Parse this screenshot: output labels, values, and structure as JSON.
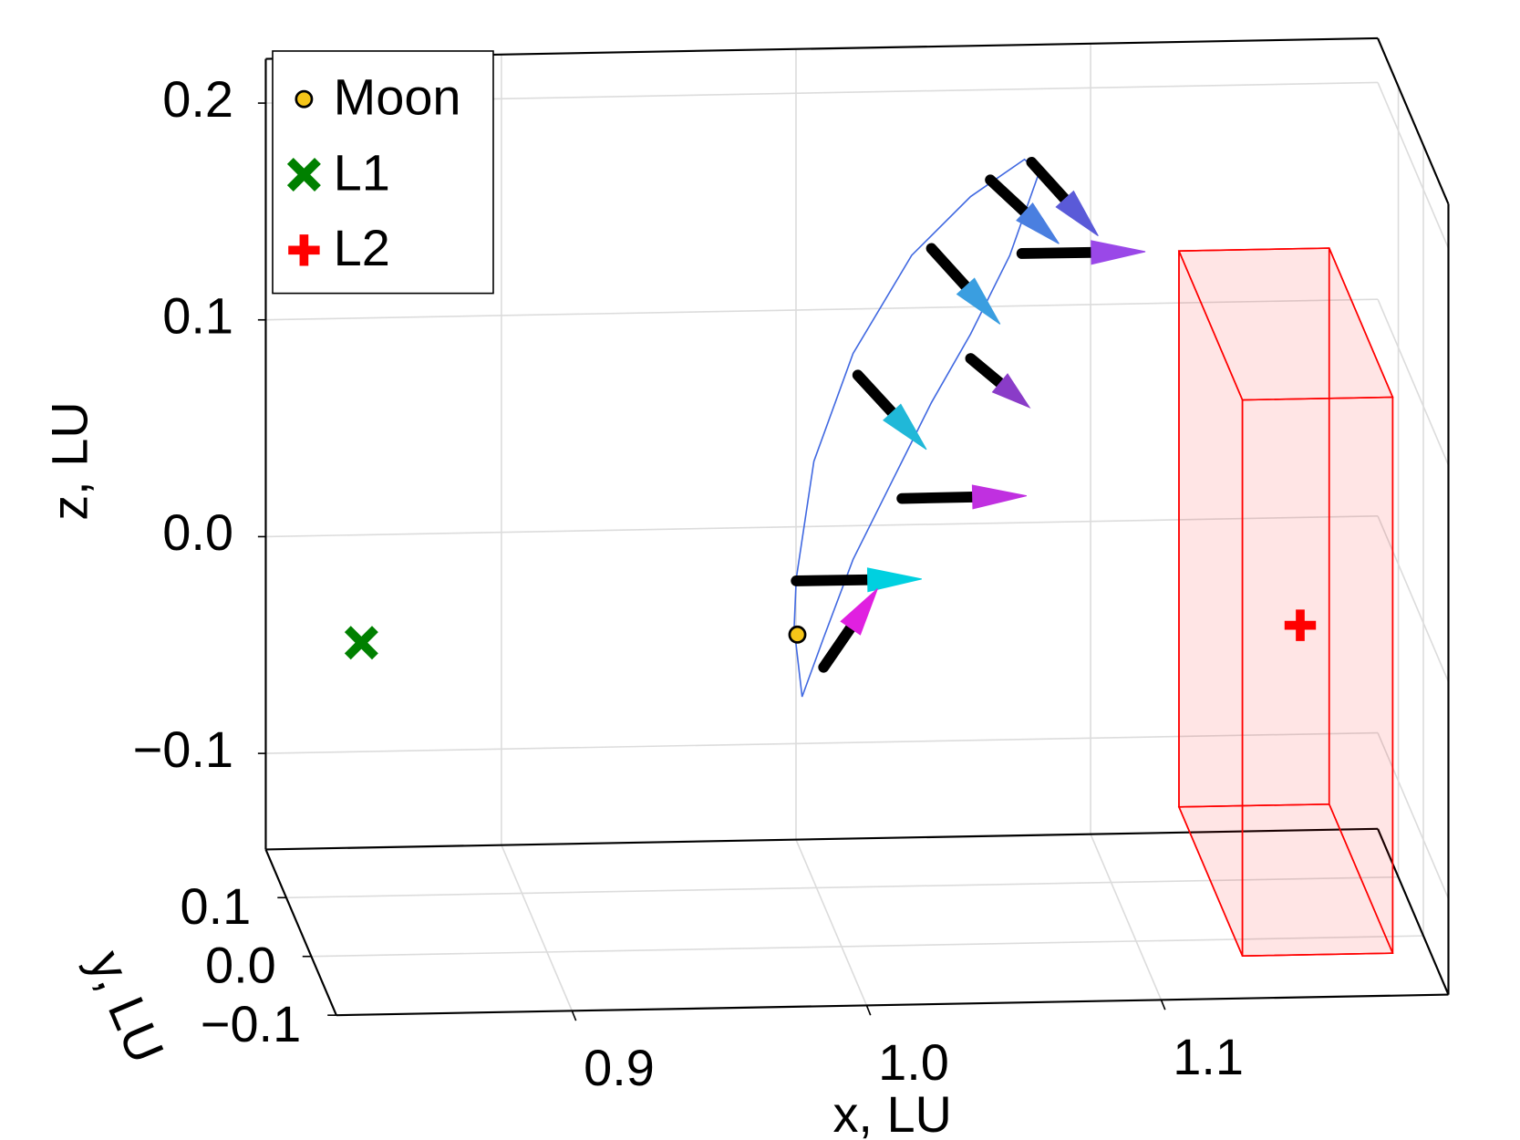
{
  "chart_data": {
    "type": "scatter3d",
    "xlabel": "x, LU",
    "ylabel": "y, LU",
    "zlabel": "z, LU",
    "xlim": [
      0.82,
      1.1975
    ],
    "ylim": [
      -0.1,
      0.182
    ],
    "zlim": [
      -0.1443,
      0.2204
    ],
    "xticks": [
      0.9,
      {
        "value": 1,
        "label": "1.0"
      },
      1.1
    ],
    "yticks": [
      {
        "value": -0.1,
        "label": "−0.1"
      },
      {
        "value": 0,
        "label": "0.0"
      },
      0.1
    ],
    "zticks": [
      {
        "value": -0.1,
        "label": "−0.1"
      },
      {
        "value": 0,
        "label": "0.0"
      },
      0.1,
      0.2
    ],
    "grid": true,
    "legend": "upper left",
    "series": [
      {
        "name": "Moon",
        "marker": "circle",
        "color": "#f5c518",
        "x": [
          0.985
        ],
        "y": [
          0
        ],
        "z": [
          0
        ]
      },
      {
        "name": "L1",
        "marker": "x",
        "color": "#008000",
        "x": [
          0.837
        ],
        "y": [
          0
        ],
        "z": [
          0
        ]
      },
      {
        "name": "L2",
        "marker": "plus",
        "color": "#ff0000",
        "x": [
          1.1557
        ],
        "y": [
          0
        ],
        "z": [
          0
        ]
      }
    ],
    "orbit": {
      "color": "#4169e1",
      "x": [
        0.9866,
        0.9839,
        0.9846,
        0.9906,
        1.0039,
        1.0238,
        1.0438,
        1.0621,
        1.0671,
        1.0571,
        1.0438,
        1.0305,
        1.0172,
        1.0039,
        0.9939
      ],
      "y": [
        0,
        0,
        0,
        0,
        0,
        0,
        0,
        0,
        0,
        0,
        0,
        0,
        0,
        0,
        0
      ],
      "z": [
        -0.0287,
        0.0031,
        0.0257,
        0.0798,
        0.1292,
        0.174,
        0.2006,
        0.2173,
        0.2113,
        0.1731,
        0.1372,
        0.1059,
        0.0701,
        0.0342,
        -0.0017
      ]
    },
    "arrows": {
      "shaft_color": "#000000",
      "colors": [
        "#00d0e0",
        "#e020e0",
        "#c030e0",
        "#20b8d8",
        "#8a3cc8",
        "#3a9ee0",
        "#4a7fe0",
        "#5a5ad8",
        "#9a48e8"
      ],
      "x0": [
        0.9846,
        0.9939,
        1.0205,
        1.0055,
        1.0438,
        1.0305,
        1.0505,
        1.0645,
        1.0612
      ],
      "y0": [
        0,
        0,
        0,
        0,
        0,
        0,
        0,
        0,
        0
      ],
      "z0": [
        0.0248,
        -0.0153,
        0.0619,
        0.1192,
        0.1259,
        0.177,
        0.2081,
        0.2159,
        0.1739
      ],
      "x1": [
        1.0272,
        1.0122,
        1.0628,
        1.0288,
        1.0638,
        1.0538,
        1.0738,
        1.0871,
        1.1031
      ],
      "y1": [
        0,
        0,
        0,
        0,
        0,
        0,
        0,
        0,
        0
      ],
      "z1": [
        0.0246,
        0.0205,
        0.0621,
        0.0843,
        0.1028,
        0.1415,
        0.1781,
        0.1814,
        0.1737
      ]
    },
    "box": {
      "color": "#ff0000",
      "x": [
        1.13,
        1.181
      ],
      "y": [
        -0.0715,
        0.182
      ],
      "z": [
        -0.1325,
        0.124
      ]
    }
  }
}
